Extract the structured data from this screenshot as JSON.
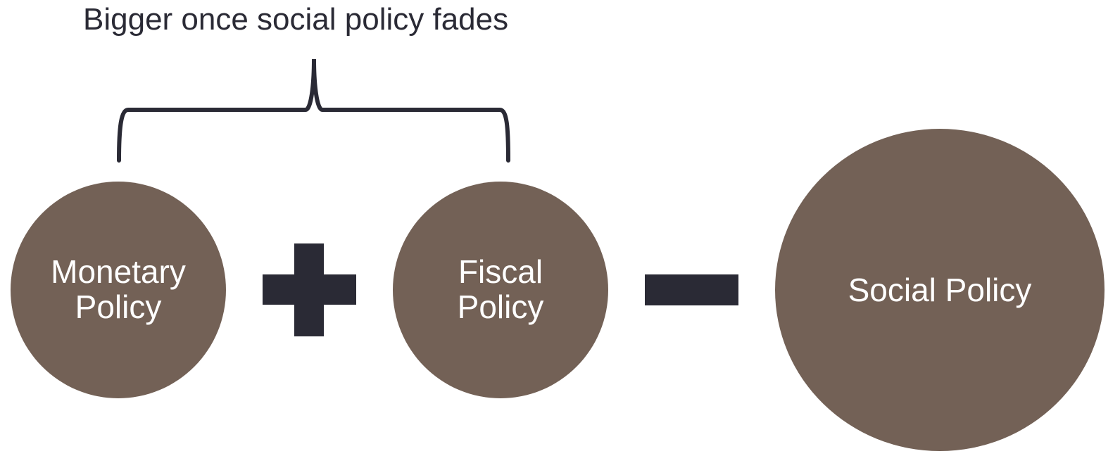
{
  "title": "Bigger once social policy fades",
  "nodes": [
    {
      "label": "Monetary Policy"
    },
    {
      "label": "Fiscal Policy"
    },
    {
      "label": "Social Policy"
    }
  ]
}
